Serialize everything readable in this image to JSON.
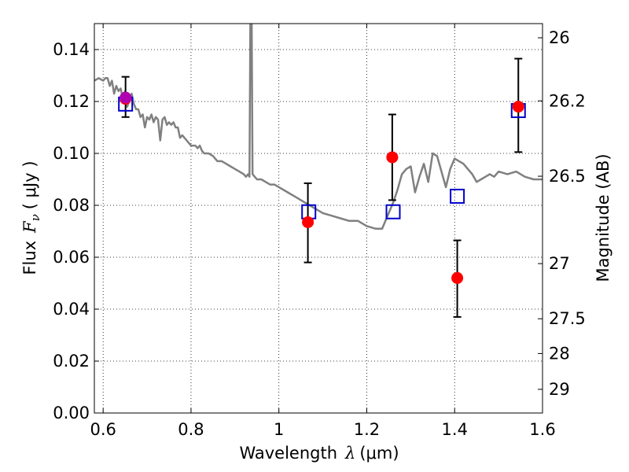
{
  "chart_data": {
    "type": "scatter",
    "title": "",
    "xlabel_prefix": "Wavelength",
    "xlabel_symbol": "λ",
    "xlabel_unit": "(μm)",
    "ylabel_prefix": "Flux",
    "ylabel_symbol": "F",
    "ylabel_subscript": "ν",
    "ylabel_unit": "( μJy )",
    "ylabel_right": "Magnitude (AB)",
    "xlim": [
      0.58,
      1.6
    ],
    "ylim": [
      0.0,
      0.15
    ],
    "grid": true,
    "x_ticks": [
      {
        "value": 0.6,
        "label": "0.6"
      },
      {
        "value": 0.8,
        "label": "0.8"
      },
      {
        "value": 1.0,
        "label": "1"
      },
      {
        "value": 1.2,
        "label": "1.2"
      },
      {
        "value": 1.4,
        "label": "1.4"
      },
      {
        "value": 1.6,
        "label": "1.6"
      }
    ],
    "y_ticks": [
      {
        "value": 0.0,
        "label": "0.00"
      },
      {
        "value": 0.02,
        "label": "0.02"
      },
      {
        "value": 0.04,
        "label": "0.04"
      },
      {
        "value": 0.06,
        "label": "0.06"
      },
      {
        "value": 0.08,
        "label": "0.08"
      },
      {
        "value": 0.1,
        "label": "0.10"
      },
      {
        "value": 0.12,
        "label": "0.12"
      },
      {
        "value": 0.14,
        "label": "0.14"
      }
    ],
    "right_ticks": [
      {
        "value": 26.0,
        "label": "26"
      },
      {
        "value": 26.2,
        "label": "26.2"
      },
      {
        "value": 26.5,
        "label": "26.5"
      },
      {
        "value": 27.0,
        "label": "27"
      },
      {
        "value": 27.5,
        "label": "27.5"
      },
      {
        "value": 28.0,
        "label": "28"
      },
      {
        "value": 29.0,
        "label": "29"
      }
    ],
    "series": [
      {
        "kind": "line",
        "color": "#808080",
        "x": [
          0.58,
          0.59,
          0.6,
          0.605,
          0.61,
          0.615,
          0.62,
          0.625,
          0.63,
          0.635,
          0.64,
          0.645,
          0.65,
          0.655,
          0.66,
          0.665,
          0.67,
          0.675,
          0.68,
          0.685,
          0.69,
          0.695,
          0.7,
          0.705,
          0.71,
          0.715,
          0.72,
          0.725,
          0.73,
          0.735,
          0.74,
          0.745,
          0.75,
          0.755,
          0.76,
          0.765,
          0.77,
          0.775,
          0.78,
          0.785,
          0.79,
          0.8,
          0.81,
          0.815,
          0.82,
          0.825,
          0.83,
          0.835,
          0.84,
          0.85,
          0.86,
          0.87,
          0.88,
          0.89,
          0.9,
          0.91,
          0.92,
          0.925,
          0.93,
          0.933,
          0.935,
          0.936,
          0.937,
          0.938,
          0.94,
          0.95,
          0.96,
          0.97,
          0.98,
          0.99,
          1.0,
          1.02,
          1.04,
          1.06,
          1.08,
          1.1,
          1.12,
          1.14,
          1.16,
          1.18,
          1.2,
          1.22,
          1.235,
          1.25,
          1.26,
          1.27,
          1.28,
          1.29,
          1.3,
          1.31,
          1.32,
          1.33,
          1.34,
          1.35,
          1.36,
          1.37,
          1.38,
          1.39,
          1.4,
          1.41,
          1.42,
          1.43,
          1.44,
          1.45,
          1.46,
          1.47,
          1.48,
          1.49,
          1.5,
          1.52,
          1.54,
          1.56,
          1.58,
          1.6
        ],
        "y": [
          0.128,
          0.129,
          0.128,
          0.129,
          0.129,
          0.126,
          0.128,
          0.123,
          0.126,
          0.124,
          0.125,
          0.121,
          0.124,
          0.118,
          0.121,
          0.123,
          0.119,
          0.117,
          0.117,
          0.114,
          0.115,
          0.11,
          0.114,
          0.113,
          0.115,
          0.112,
          0.114,
          0.113,
          0.105,
          0.113,
          0.114,
          0.111,
          0.112,
          0.111,
          0.112,
          0.11,
          0.11,
          0.106,
          0.107,
          0.106,
          0.105,
          0.103,
          0.103,
          0.102,
          0.103,
          0.101,
          0.1,
          0.1,
          0.1,
          0.099,
          0.097,
          0.097,
          0.096,
          0.095,
          0.094,
          0.093,
          0.092,
          0.091,
          0.092,
          0.091,
          0.15,
          0.15,
          0.15,
          0.15,
          0.092,
          0.09,
          0.09,
          0.089,
          0.088,
          0.088,
          0.087,
          0.085,
          0.083,
          0.081,
          0.079,
          0.077,
          0.076,
          0.075,
          0.074,
          0.074,
          0.072,
          0.071,
          0.071,
          0.077,
          0.081,
          0.086,
          0.092,
          0.094,
          0.095,
          0.085,
          0.091,
          0.096,
          0.089,
          0.1,
          0.099,
          0.093,
          0.087,
          0.094,
          0.098,
          0.097,
          0.096,
          0.094,
          0.092,
          0.089,
          0.09,
          0.091,
          0.092,
          0.091,
          0.093,
          0.092,
          0.093,
          0.091,
          0.09,
          0.09
        ]
      },
      {
        "kind": "scatter",
        "marker": "circle",
        "color": "#ff0000",
        "x": [
          0.651,
          1.066,
          1.258,
          1.406,
          1.545
        ],
        "y": [
          0.121,
          0.0735,
          0.0985,
          0.052,
          0.118
        ],
        "yerr_low": [
          0.114,
          0.058,
          0.082,
          0.037,
          0.1005
        ],
        "yerr_high": [
          0.1295,
          0.0885,
          0.115,
          0.0665,
          0.1365
        ]
      },
      {
        "kind": "scatter",
        "marker": "square-open",
        "color": "#0000cc",
        "x": [
          0.651,
          1.068,
          1.26,
          1.406,
          1.545
        ],
        "y": [
          0.119,
          0.0775,
          0.0775,
          0.0835,
          0.1165
        ]
      },
      {
        "kind": "scatter",
        "marker": "circle",
        "color": "#b000b0",
        "x": [
          0.651
        ],
        "y": [
          0.1215
        ]
      }
    ]
  }
}
